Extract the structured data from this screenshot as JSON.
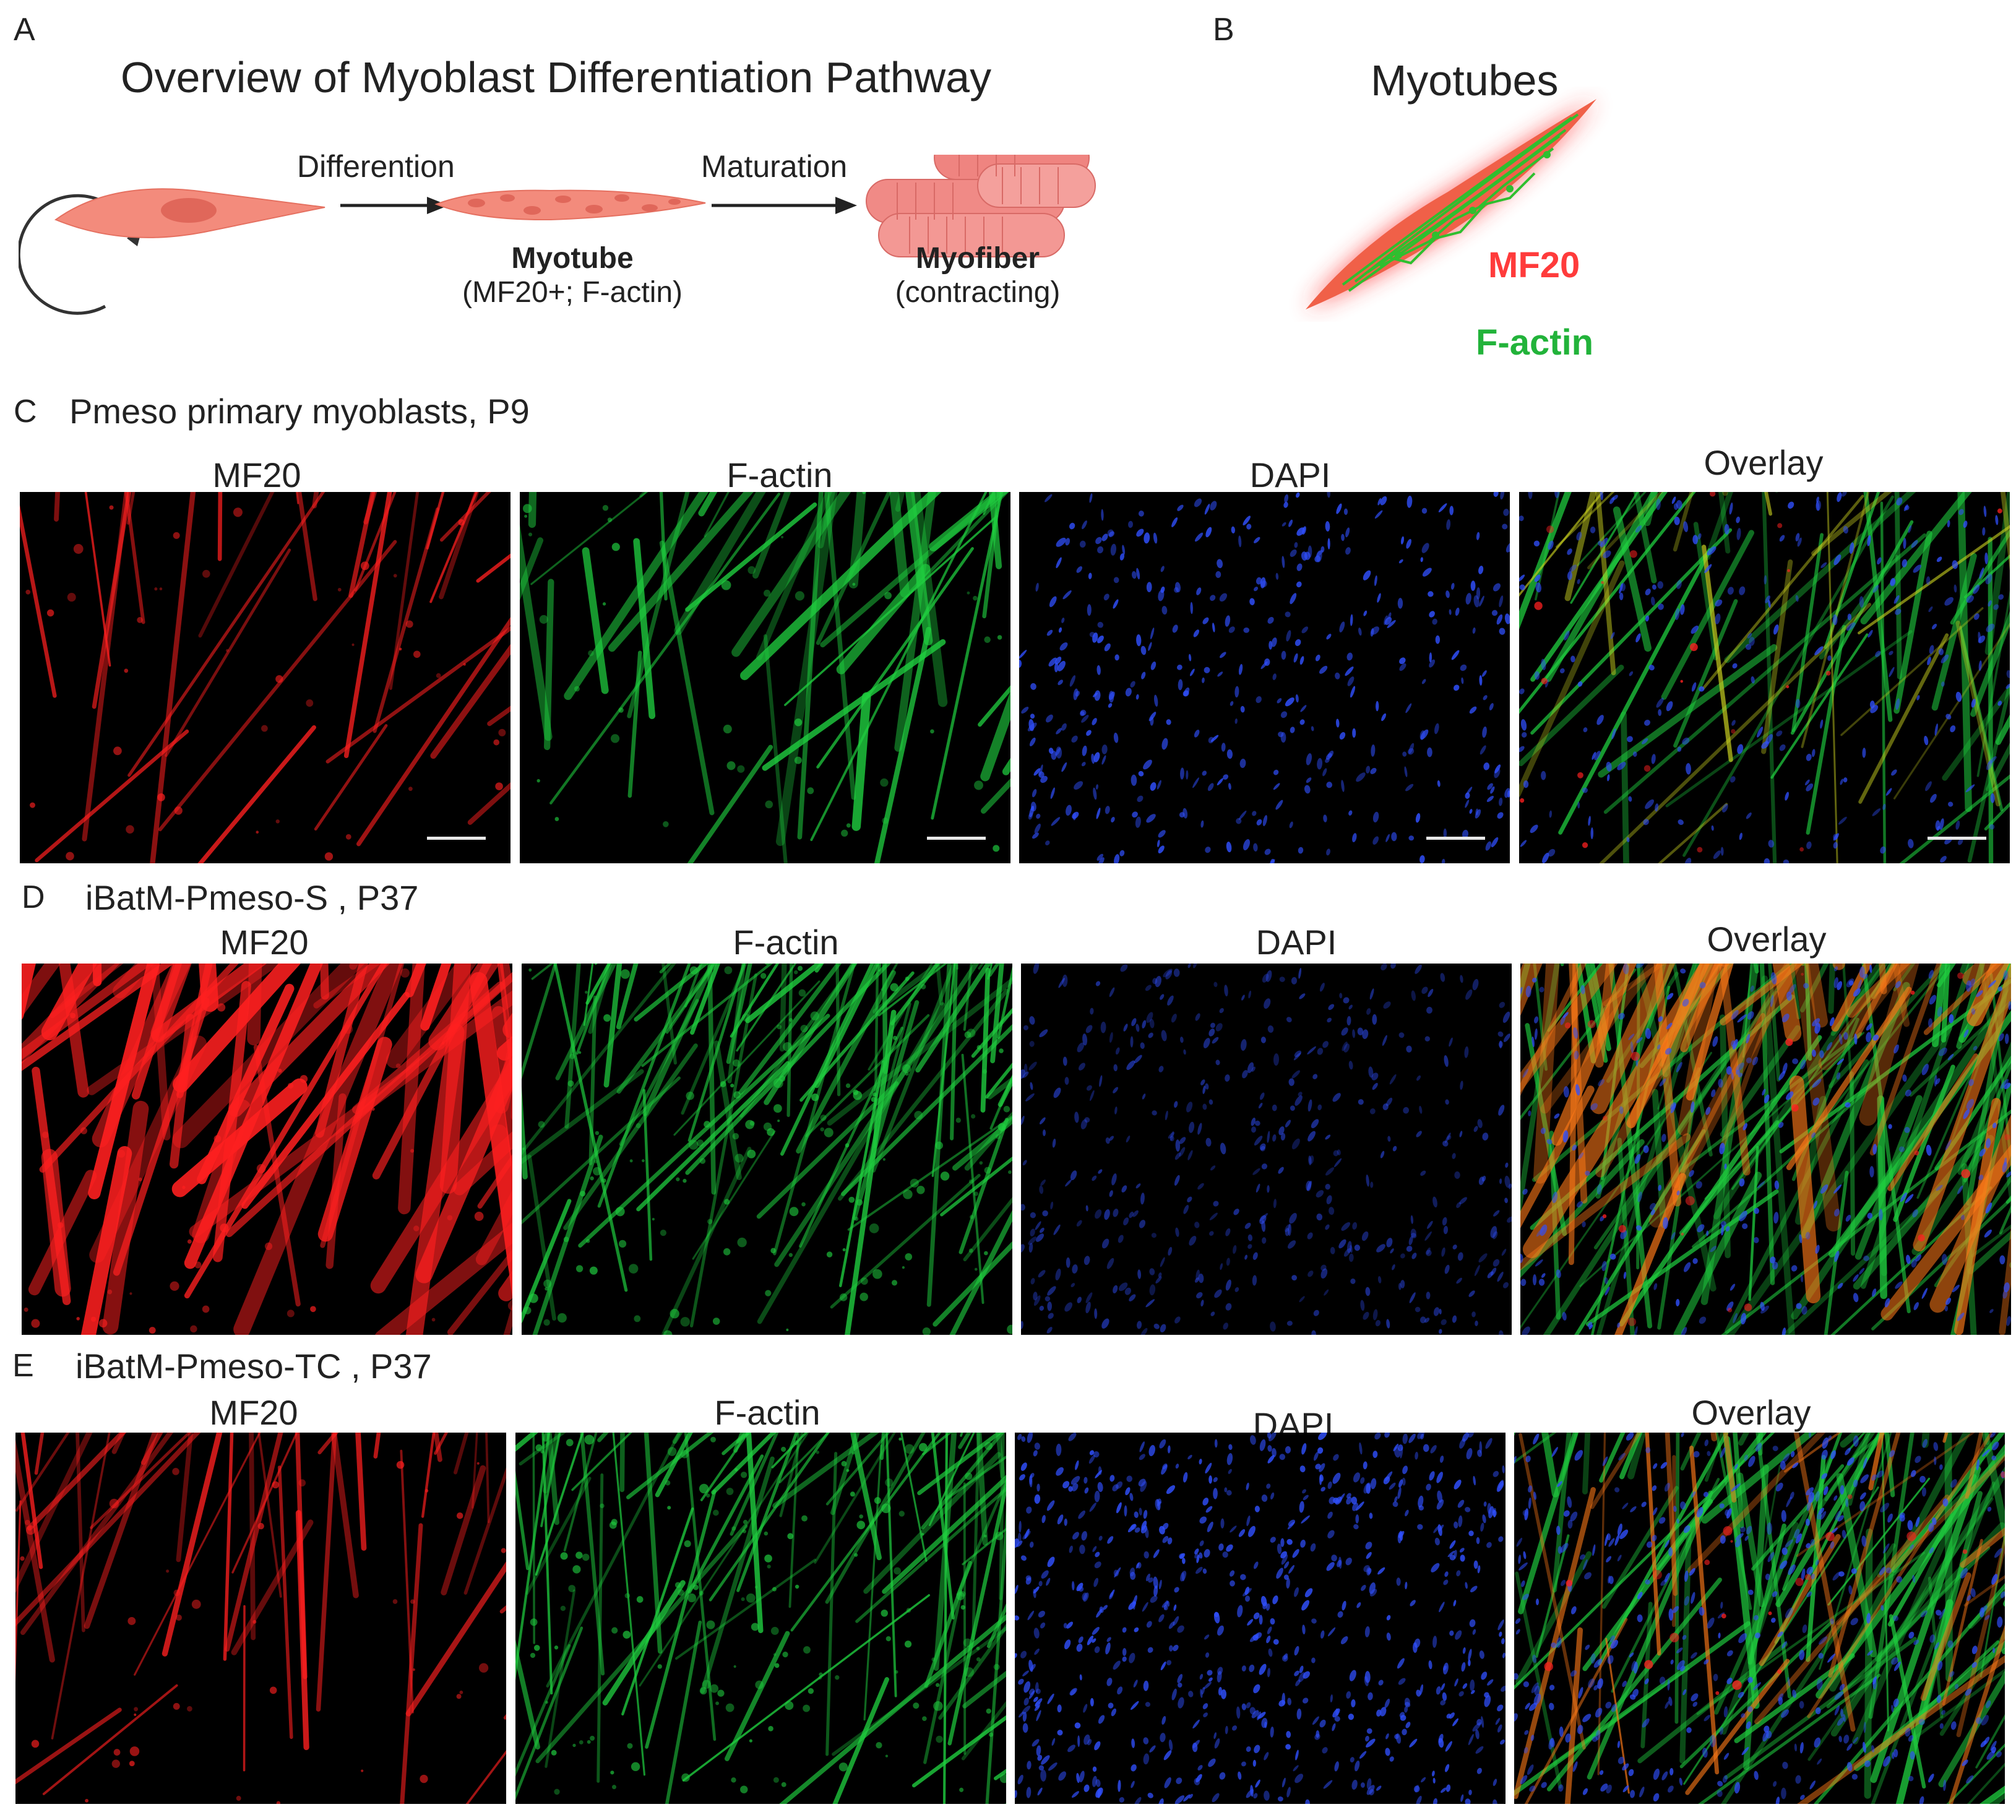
{
  "figure": {
    "panels": {
      "A": {
        "letter": "A",
        "title": "Overview of Myoblast Differentiation Pathway",
        "step1": "Differention",
        "step2": "Maturation",
        "stage_myotube_name": "Myotube",
        "stage_myotube_markers": "(MF20+; F-actin)",
        "stage_myofiber_name": "Myofiber",
        "stage_myofiber_note": "(contracting)"
      },
      "B": {
        "letter": "B",
        "title": "Myotubes",
        "legend_mf20": "MF20",
        "legend_factin": "F-actin",
        "mf20_color": "#ff3b3b",
        "factin_color": "#22b33a"
      }
    },
    "channels": [
      "MF20",
      "F-actin",
      "DAPI",
      "Overlay"
    ],
    "channel_colors": {
      "MF20": "#ff2020",
      "F-actin": "#20d040",
      "DAPI": "#3050ff"
    },
    "rows": [
      {
        "letter": "C",
        "title": "Pmeso primary myoblasts, P9"
      },
      {
        "letter": "D",
        "title": "iBatM-Pmeso-S , P37"
      },
      {
        "letter": "E",
        "title": "iBatM-Pmeso-TC , P37"
      }
    ],
    "row_E_dapi_label": "DAPI"
  }
}
